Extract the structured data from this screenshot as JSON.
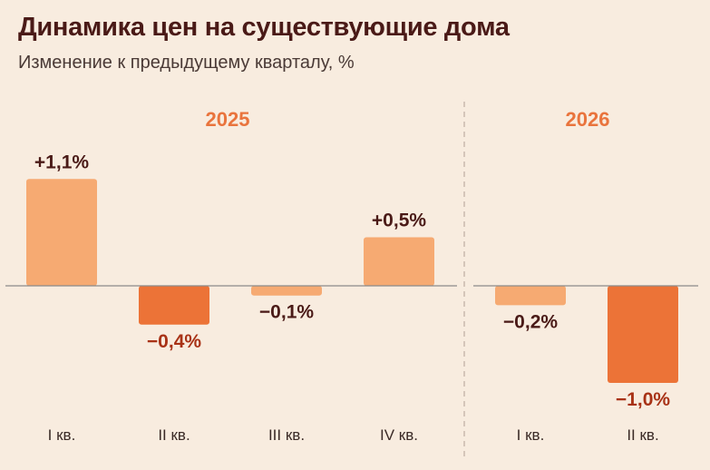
{
  "title": "Динамика цен на существующие дома",
  "subtitle": "Изменение к предыдущему кварталу, %",
  "colors": {
    "light_bar": "#f6aa72",
    "dark_bar": "#ec7337",
    "year": "#e9743d",
    "baseline": "#8a8a8a",
    "divider": "#c9b9ad"
  },
  "chart_data": {
    "type": "bar",
    "title": "Динамика цен на существующие дома",
    "subtitle": "Изменение к предыдущему кварталу, %",
    "xlabel": "",
    "ylabel": "",
    "grid": false,
    "legend": "none",
    "ylim": [
      -1.0,
      1.1
    ],
    "groups": [
      {
        "year": "2025",
        "categories": [
          "I кв.",
          "II кв.",
          "III кв.",
          "IV кв."
        ],
        "values": [
          1.1,
          -0.4,
          -0.1,
          0.5
        ],
        "labels": [
          "+1,1%",
          "−0,4%",
          "−0,1%",
          "+0,5%"
        ],
        "tones": [
          "light",
          "dark",
          "light",
          "light"
        ]
      },
      {
        "year": "2026",
        "categories": [
          "I кв.",
          "II кв."
        ],
        "values": [
          -0.2,
          -1.0
        ],
        "labels": [
          "−0,2%",
          "−1,0%"
        ],
        "tones": [
          "light",
          "dark"
        ]
      }
    ]
  }
}
